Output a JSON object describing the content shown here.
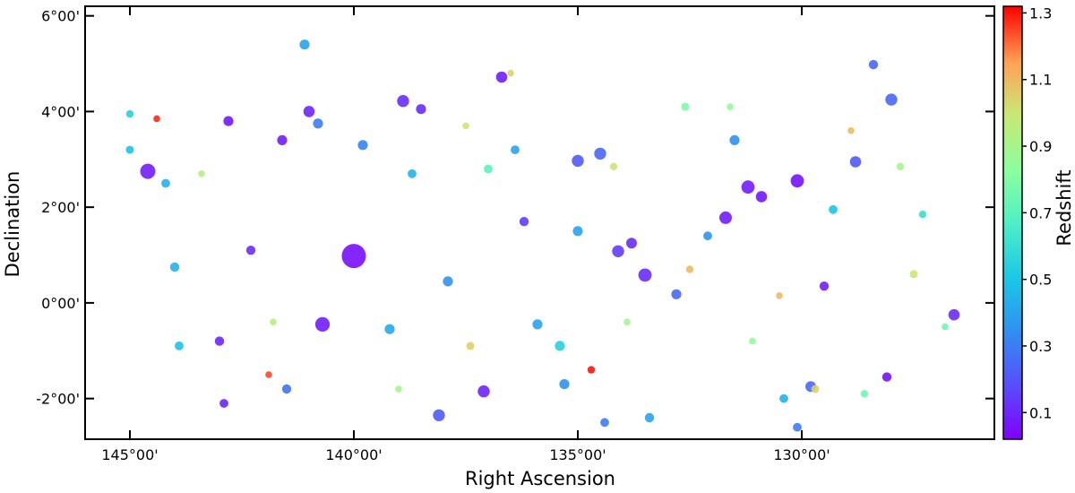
{
  "chart_data": {
    "type": "scatter",
    "title": "",
    "xlabel": "Right Ascension",
    "ylabel": "Declination",
    "xlim": [
      146.0,
      125.7
    ],
    "ylim": [
      -2.85,
      6.2
    ],
    "x_inverted": true,
    "x_ticks": [
      {
        "value": 145,
        "label": "145°00'"
      },
      {
        "value": 140,
        "label": "140°00'"
      },
      {
        "value": 135,
        "label": "135°00'"
      },
      {
        "value": 130,
        "label": "130°00'"
      }
    ],
    "y_ticks": [
      {
        "value": 6,
        "label": "6°00'"
      },
      {
        "value": 4,
        "label": "4°00'"
      },
      {
        "value": 2,
        "label": "2°00'"
      },
      {
        "value": 0,
        "label": "0°00'"
      },
      {
        "value": -2,
        "label": "-2°00'"
      }
    ],
    "colorbar": {
      "label": "Redshift",
      "colormap": "rainbow",
      "range": [
        0.02,
        1.32
      ],
      "ticks": [
        0.1,
        0.3,
        0.5,
        0.7,
        0.9,
        1.1,
        1.3
      ],
      "tick_labels": [
        "0.1",
        "0.3",
        "0.5",
        "0.7",
        "0.9",
        "1.1",
        "1.3"
      ]
    },
    "grid": false,
    "point_size_meaning": "marker size varies per object",
    "points": [
      {
        "ra": 140.0,
        "dec": 0.98,
        "z": 0.05,
        "s": 3.2
      },
      {
        "ra": 144.6,
        "dec": 2.75,
        "z": 0.08,
        "s": 1.8
      },
      {
        "ra": 140.7,
        "dec": -0.45,
        "z": 0.08,
        "s": 1.7
      },
      {
        "ra": 138.1,
        "dec": -2.35,
        "z": 0.22,
        "s": 1.3
      },
      {
        "ra": 137.1,
        "dec": -1.85,
        "z": 0.1,
        "s": 1.3
      },
      {
        "ra": 133.5,
        "dec": 0.58,
        "z": 0.12,
        "s": 1.5
      },
      {
        "ra": 131.2,
        "dec": 2.42,
        "z": 0.08,
        "s": 1.5
      },
      {
        "ra": 130.1,
        "dec": 2.55,
        "z": 0.06,
        "s": 1.5
      },
      {
        "ra": 131.7,
        "dec": 1.78,
        "z": 0.08,
        "s": 1.4
      },
      {
        "ra": 130.9,
        "dec": 2.22,
        "z": 0.07,
        "s": 1.2
      },
      {
        "ra": 128.8,
        "dec": 2.95,
        "z": 0.22,
        "s": 1.2
      },
      {
        "ra": 128.0,
        "dec": 4.25,
        "z": 0.25,
        "s": 1.3
      },
      {
        "ra": 126.6,
        "dec": -0.25,
        "z": 0.12,
        "s": 1.2
      },
      {
        "ra": 141.0,
        "dec": 4.0,
        "z": 0.1,
        "s": 1.2
      },
      {
        "ra": 138.9,
        "dec": 4.22,
        "z": 0.12,
        "s": 1.3
      },
      {
        "ra": 136.7,
        "dec": 4.72,
        "z": 0.08,
        "s": 1.2
      },
      {
        "ra": 135.0,
        "dec": 2.97,
        "z": 0.22,
        "s": 1.3
      },
      {
        "ra": 134.5,
        "dec": 3.12,
        "z": 0.25,
        "s": 1.3
      },
      {
        "ra": 134.1,
        "dec": 1.08,
        "z": 0.15,
        "s": 1.3
      },
      {
        "ra": 133.8,
        "dec": 1.25,
        "z": 0.12,
        "s": 1.1
      },
      {
        "ra": 129.8,
        "dec": -1.75,
        "z": 0.25,
        "s": 1.1
      },
      {
        "ra": 142.8,
        "dec": 3.8,
        "z": 0.07,
        "s": 1.0
      },
      {
        "ra": 141.6,
        "dec": 3.4,
        "z": 0.08,
        "s": 1.0
      },
      {
        "ra": 140.8,
        "dec": 3.75,
        "z": 0.3,
        "s": 1.0
      },
      {
        "ra": 139.8,
        "dec": 3.3,
        "z": 0.32,
        "s": 1.0
      },
      {
        "ra": 141.1,
        "dec": 5.4,
        "z": 0.4,
        "s": 1.0
      },
      {
        "ra": 138.5,
        "dec": 4.05,
        "z": 0.12,
        "s": 1.0
      },
      {
        "ra": 135.0,
        "dec": 1.5,
        "z": 0.4,
        "s": 1.0
      },
      {
        "ra": 132.8,
        "dec": 0.18,
        "z": 0.25,
        "s": 1.0
      },
      {
        "ra": 131.5,
        "dec": 3.4,
        "z": 0.35,
        "s": 1.0
      },
      {
        "ra": 129.5,
        "dec": 0.35,
        "z": 0.09,
        "s": 0.9
      },
      {
        "ra": 128.1,
        "dec": -1.55,
        "z": 0.06,
        "s": 0.9
      },
      {
        "ra": 128.4,
        "dec": 4.98,
        "z": 0.25,
        "s": 0.9
      },
      {
        "ra": 135.9,
        "dec": -0.45,
        "z": 0.4,
        "s": 1.0
      },
      {
        "ra": 137.9,
        "dec": 0.45,
        "z": 0.35,
        "s": 1.0
      },
      {
        "ra": 139.2,
        "dec": -0.55,
        "z": 0.42,
        "s": 1.0
      },
      {
        "ra": 142.3,
        "dec": 1.1,
        "z": 0.12,
        "s": 0.9
      },
      {
        "ra": 143.0,
        "dec": -0.8,
        "z": 0.1,
        "s": 0.9
      },
      {
        "ra": 142.9,
        "dec": -2.1,
        "z": 0.1,
        "s": 0.8
      },
      {
        "ra": 141.5,
        "dec": -1.8,
        "z": 0.28,
        "s": 0.9
      },
      {
        "ra": 136.2,
        "dec": 1.7,
        "z": 0.15,
        "s": 0.9
      },
      {
        "ra": 135.3,
        "dec": -1.7,
        "z": 0.35,
        "s": 1.0
      },
      {
        "ra": 135.4,
        "dec": -0.9,
        "z": 0.55,
        "s": 1.0
      },
      {
        "ra": 134.4,
        "dec": -2.5,
        "z": 0.3,
        "s": 0.8
      },
      {
        "ra": 133.4,
        "dec": -2.4,
        "z": 0.4,
        "s": 0.9
      },
      {
        "ra": 130.1,
        "dec": -2.6,
        "z": 0.3,
        "s": 0.8
      },
      {
        "ra": 130.4,
        "dec": -2.0,
        "z": 0.45,
        "s": 0.8
      },
      {
        "ra": 144.0,
        "dec": 0.75,
        "z": 0.45,
        "s": 0.9
      },
      {
        "ra": 145.0,
        "dec": 3.2,
        "z": 0.5,
        "s": 0.7
      },
      {
        "ra": 144.2,
        "dec": 2.5,
        "z": 0.45,
        "s": 0.8
      },
      {
        "ra": 143.9,
        "dec": -0.9,
        "z": 0.5,
        "s": 0.8
      },
      {
        "ra": 138.7,
        "dec": 2.7,
        "z": 0.45,
        "s": 0.8
      },
      {
        "ra": 137.0,
        "dec": 2.8,
        "z": 0.7,
        "s": 0.8
      },
      {
        "ra": 136.4,
        "dec": 3.2,
        "z": 0.4,
        "s": 0.8
      },
      {
        "ra": 132.6,
        "dec": 4.1,
        "z": 0.8,
        "s": 0.7
      },
      {
        "ra": 132.1,
        "dec": 1.4,
        "z": 0.35,
        "s": 0.8
      },
      {
        "ra": 129.3,
        "dec": 1.95,
        "z": 0.5,
        "s": 0.8
      },
      {
        "ra": 127.5,
        "dec": 0.6,
        "z": 1.0,
        "s": 0.7
      },
      {
        "ra": 129.7,
        "dec": -1.8,
        "z": 1.05,
        "s": 0.7
      },
      {
        "ra": 137.4,
        "dec": -0.9,
        "z": 1.05,
        "s": 0.7
      },
      {
        "ra": 134.7,
        "dec": -1.4,
        "z": 1.3,
        "s": 0.6
      },
      {
        "ra": 141.9,
        "dec": -1.5,
        "z": 1.25,
        "s": 0.5
      },
      {
        "ra": 144.4,
        "dec": 3.85,
        "z": 1.28,
        "s": 0.5
      },
      {
        "ra": 134.2,
        "dec": 2.85,
        "z": 1.0,
        "s": 0.6
      },
      {
        "ra": 132.5,
        "dec": 0.7,
        "z": 1.1,
        "s": 0.6
      },
      {
        "ra": 130.5,
        "dec": 0.15,
        "z": 1.1,
        "s": 0.5
      },
      {
        "ra": 128.9,
        "dec": 3.6,
        "z": 1.1,
        "s": 0.5
      },
      {
        "ra": 127.8,
        "dec": 2.85,
        "z": 0.9,
        "s": 0.6
      },
      {
        "ra": 137.5,
        "dec": 3.7,
        "z": 1.0,
        "s": 0.5
      },
      {
        "ra": 143.4,
        "dec": 2.7,
        "z": 0.95,
        "s": 0.5
      },
      {
        "ra": 141.8,
        "dec": -0.4,
        "z": 0.95,
        "s": 0.5
      },
      {
        "ra": 139.0,
        "dec": -1.8,
        "z": 0.9,
        "s": 0.5
      },
      {
        "ra": 133.9,
        "dec": -0.4,
        "z": 0.9,
        "s": 0.5
      },
      {
        "ra": 131.1,
        "dec": -0.8,
        "z": 0.85,
        "s": 0.5
      },
      {
        "ra": 131.6,
        "dec": 4.1,
        "z": 0.85,
        "s": 0.5
      },
      {
        "ra": 136.5,
        "dec": 4.8,
        "z": 1.05,
        "s": 0.5
      },
      {
        "ra": 128.6,
        "dec": -1.9,
        "z": 0.75,
        "s": 0.6
      },
      {
        "ra": 126.8,
        "dec": -0.5,
        "z": 0.75,
        "s": 0.5
      },
      {
        "ra": 145.0,
        "dec": 3.95,
        "z": 0.55,
        "s": 0.6
      },
      {
        "ra": 127.3,
        "dec": 1.85,
        "z": 0.6,
        "s": 0.6
      }
    ]
  }
}
